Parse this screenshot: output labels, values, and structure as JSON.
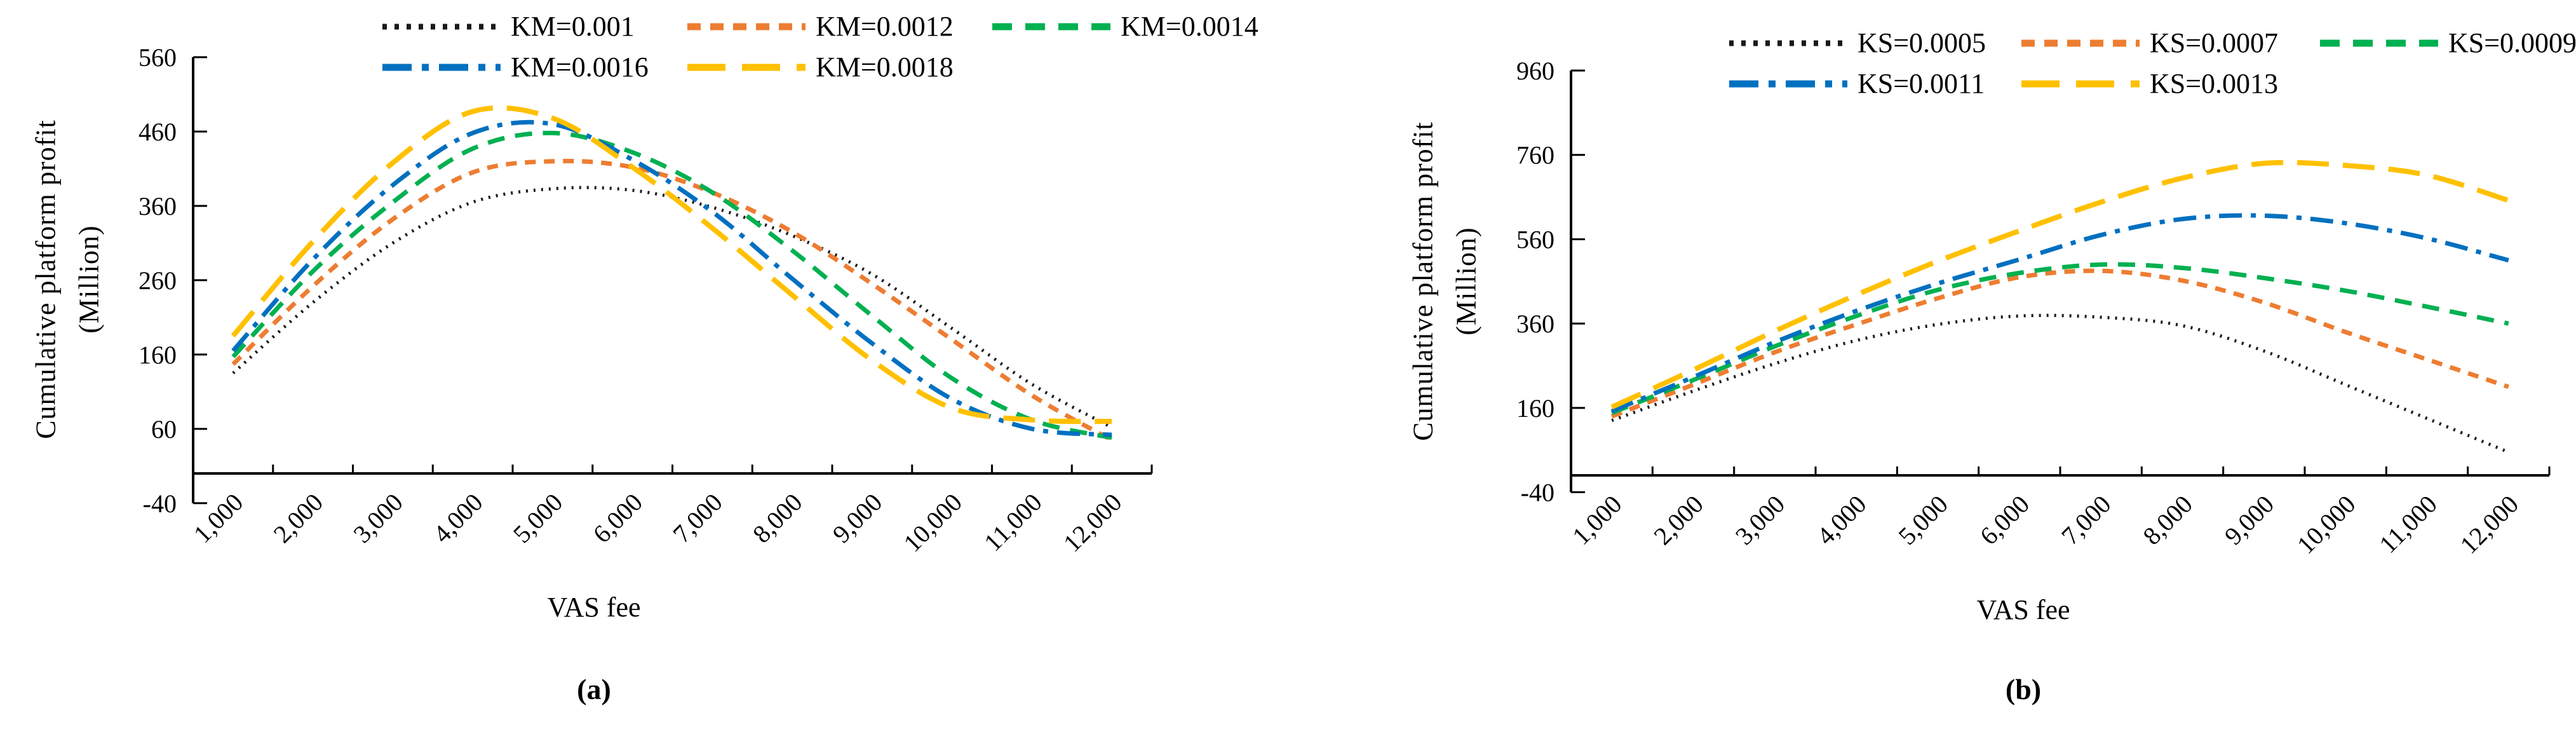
{
  "colors": {
    "black": "#1a1a1a",
    "orange": "#ED7D31",
    "green": "#00B050",
    "blue": "#0070C0",
    "yellow": "#FFC000"
  },
  "chart_data": [
    {
      "id": "a",
      "type": "line",
      "caption": "(a)",
      "title": "",
      "ylabel": "Cumulative platform profit",
      "ylabel_unit": "(Million)",
      "xlabel": "VAS fee",
      "ylim": [
        -40,
        560
      ],
      "grid": false,
      "legend_position": "top",
      "y_ticks": [
        "560",
        "460",
        "360",
        "260",
        "160",
        "60",
        "-40"
      ],
      "categories": [
        "1,000",
        "2,000",
        "3,000",
        "4,000",
        "5,000",
        "6,000",
        "7,000",
        "8,000",
        "9,000",
        "10,000",
        "11,000",
        "12,000"
      ],
      "legend_rows": [
        [
          0,
          1,
          2
        ],
        [
          3,
          4
        ]
      ],
      "series": [
        {
          "label": "KM=0.001",
          "color": "black",
          "style": "dotted",
          "values": [
            135,
            230,
            310,
            365,
            383,
            381,
            358,
            320,
            268,
            195,
            120,
            62
          ]
        },
        {
          "label": "KM=0.0012",
          "color": "orange",
          "style": "dash",
          "values": [
            147,
            252,
            342,
            405,
            420,
            412,
            378,
            325,
            255,
            180,
            105,
            45
          ]
        },
        {
          "label": "KM=0.0014",
          "color": "green",
          "style": "med-dash",
          "values": [
            157,
            272,
            365,
            437,
            458,
            432,
            378,
            300,
            212,
            128,
            72,
            48
          ]
        },
        {
          "label": "KM=0.0016",
          "color": "blue",
          "style": "dash-dot",
          "values": [
            165,
            288,
            388,
            458,
            470,
            422,
            352,
            262,
            175,
            100,
            60,
            52
          ]
        },
        {
          "label": "KM=0.0018",
          "color": "yellow",
          "style": "long-dash",
          "values": [
            185,
            312,
            418,
            487,
            478,
            412,
            330,
            240,
            152,
            88,
            72,
            70
          ]
        }
      ]
    },
    {
      "id": "b",
      "type": "line",
      "caption": "(b)",
      "title": "",
      "ylabel": "Cumulative platform profit",
      "ylabel_unit": "(Million)",
      "xlabel": "VAS fee",
      "ylim": [
        -40,
        960
      ],
      "grid": false,
      "legend_position": "top",
      "y_ticks": [
        "960",
        "760",
        "560",
        "360",
        "160",
        "-40"
      ],
      "categories": [
        "1,000",
        "2,000",
        "3,000",
        "4,000",
        "5,000",
        "6,000",
        "7,000",
        "8,000",
        "9,000",
        "10,000",
        "11,000",
        "12,000"
      ],
      "legend_rows": [
        [
          0,
          1,
          2
        ],
        [
          3,
          4
        ]
      ],
      "series": [
        {
          "label": "KS=0.0005",
          "color": "black",
          "style": "dotted",
          "values": [
            130,
            200,
            265,
            320,
            358,
            378,
            375,
            355,
            295,
            215,
            135,
            55
          ]
        },
        {
          "label": "KS=0.0007",
          "color": "orange",
          "style": "dash",
          "values": [
            140,
            215,
            292,
            358,
            420,
            470,
            485,
            462,
            410,
            340,
            275,
            210
          ]
        },
        {
          "label": "KS=0.0009",
          "color": "green",
          "style": "med-dash",
          "values": [
            148,
            226,
            306,
            378,
            440,
            480,
            500,
            492,
            468,
            438,
            400,
            360
          ]
        },
        {
          "label": "KS=0.0011",
          "color": "blue",
          "style": "dash-dot",
          "values": [
            152,
            233,
            316,
            390,
            455,
            512,
            570,
            608,
            616,
            598,
            562,
            510
          ]
        },
        {
          "label": "KS=0.0013",
          "color": "yellow",
          "style": "long-dash",
          "values": [
            162,
            250,
            342,
            428,
            508,
            580,
            648,
            705,
            740,
            735,
            712,
            652
          ]
        }
      ]
    }
  ]
}
